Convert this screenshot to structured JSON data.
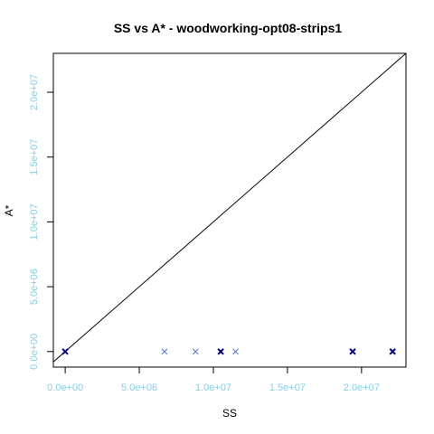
{
  "chart_data": {
    "type": "scatter",
    "title": "SS vs A* - woodworking-opt08-strips1",
    "xlabel": "SS",
    "ylabel": "A*",
    "xlim": [
      -800000,
      23000000
    ],
    "ylim": [
      -1200000,
      23000000
    ],
    "x_ticks": [
      {
        "value": 0,
        "label": "0.0e+00"
      },
      {
        "value": 5000000,
        "label": "5.0e+06"
      },
      {
        "value": 10000000,
        "label": "1.0e+07"
      },
      {
        "value": 15000000,
        "label": "1.5e+07"
      },
      {
        "value": 20000000,
        "label": "2.0e+07"
      }
    ],
    "y_ticks": [
      {
        "value": 0,
        "label": "0.0e+00"
      },
      {
        "value": 5000000,
        "label": "5.0e+06"
      },
      {
        "value": 10000000,
        "label": "1.0e+07"
      },
      {
        "value": 15000000,
        "label": "1.5e+07"
      },
      {
        "value": 20000000,
        "label": "2.0e+07"
      }
    ],
    "grid": false,
    "diagonal_reference_line": true,
    "marker": "x",
    "tick_label_color": "#87CEEB",
    "points": [
      {
        "x": 0,
        "y": 0,
        "color": "#00008B",
        "bold": true
      },
      {
        "x": 6700000,
        "y": 0,
        "color": "#4169E1",
        "bold": false
      },
      {
        "x": 8800000,
        "y": 0,
        "color": "#4169E1",
        "bold": false
      },
      {
        "x": 10500000,
        "y": 0,
        "color": "#00008B",
        "bold": true
      },
      {
        "x": 11500000,
        "y": 0,
        "color": "#4169E1",
        "bold": false
      },
      {
        "x": 19400000,
        "y": 0,
        "color": "#00008B",
        "bold": true
      },
      {
        "x": 22100000,
        "y": 0,
        "color": "#00008B",
        "bold": true
      }
    ]
  }
}
